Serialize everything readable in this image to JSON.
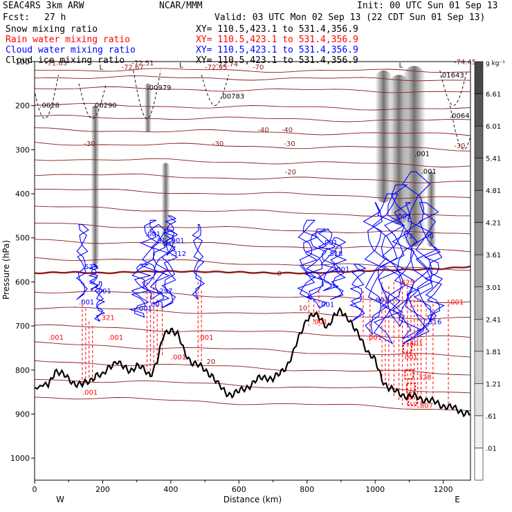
{
  "header": {
    "model": "SEAC4RS  3km ARW",
    "center": "NCAR/MMM",
    "init": "Init: 00 UTC Sun 01 Sep 13",
    "fcst_label": "Fcst:",
    "fcst_value": "27 h",
    "valid": "Valid: 03 UTC Mon 02 Sep 13 (22 CDT Sun 01 Sep 13)"
  },
  "fields": [
    {
      "name": "Snow mixing ratio",
      "xy": "XY= 110.5,423.1 to 531.4,356.9",
      "color": "#000000"
    },
    {
      "name": "Rain water mixing ratio",
      "xy": "XY= 110.5,423.1 to 531.4,356.9",
      "color": "#ff0000"
    },
    {
      "name": "Cloud water mixing ratio",
      "xy": "XY= 110.5,423.1 to 531.4,356.9",
      "color": "#0000ff"
    },
    {
      "name": "Cloud ice mixing ratio",
      "xy": "XY= 110.5,423.1 to 531.4,356.9",
      "color": "#000000"
    }
  ],
  "chart_data": {
    "type": "cross-section",
    "xlabel": "Distance (km)",
    "ylabel": "Pressure (hPa)",
    "xlim": [
      0,
      1280
    ],
    "ylim": [
      1050,
      100
    ],
    "x_ticks": [
      0,
      200,
      400,
      600,
      800,
      1000,
      1200
    ],
    "y_ticks": [
      100,
      200,
      300,
      400,
      500,
      600,
      700,
      800,
      900,
      1000
    ],
    "x_end_labels": {
      "left": "W",
      "right": "E"
    },
    "colorbar": {
      "unit": "g kg⁻¹",
      "levels": [
        "6.61",
        "6.01",
        "5.41",
        "4.81",
        "4.21",
        "3.61",
        "3.01",
        "2.41",
        "1.81",
        "1.21",
        ".61",
        ".01"
      ]
    },
    "temperature_labels": [
      {
        "x": 30,
        "p": 102,
        "text": "-71.63"
      },
      {
        "x": 285,
        "p": 102,
        "text": "-72.51"
      },
      {
        "x": 532,
        "p": 105,
        "text": "-72.74"
      },
      {
        "x": 1390,
        "p": 100,
        "text": "-74.45"
      },
      {
        "x": 190,
        "p": 112,
        "text": "L"
      },
      {
        "x": 255,
        "p": 112,
        "text": "-72.67"
      },
      {
        "x": 425,
        "p": 107,
        "text": "L"
      },
      {
        "x": 500,
        "p": 112,
        "text": "-72.95"
      },
      {
        "x": 640,
        "p": 112,
        "text": "-70"
      },
      {
        "x": 1070,
        "p": 107,
        "text": "L"
      },
      {
        "x": 655,
        "p": 254,
        "text": "-40"
      },
      {
        "x": 725,
        "p": 254,
        "text": "-40"
      },
      {
        "x": 145,
        "p": 285,
        "text": "-30"
      },
      {
        "x": 522,
        "p": 285,
        "text": "-30"
      },
      {
        "x": 732,
        "p": 285,
        "text": "-30"
      },
      {
        "x": 1250,
        "p": 290,
        "text": "-30"
      },
      {
        "x": 735,
        "p": 350,
        "text": "-20"
      },
      {
        "x": 712,
        "p": 580,
        "text": "0"
      },
      {
        "x": 775,
        "p": 658,
        "text": "10"
      },
      {
        "x": 505,
        "p": 780,
        "text": "20"
      }
    ],
    "maxima_labels": [
      {
        "x": 170,
        "p": 198,
        "text": ".00290",
        "color": "#000000"
      },
      {
        "x": 330,
        "p": 158,
        "text": ".00979",
        "color": "#000000"
      },
      {
        "x": 545,
        "p": 178,
        "text": ".00783",
        "color": "#000000"
      },
      {
        "x": 15,
        "p": 198,
        "text": ".0028",
        "color": "#000000"
      },
      {
        "x": 1190,
        "p": 130,
        "text": ".01643",
        "color": "#000000"
      },
      {
        "x": 1250,
        "p": 222,
        "text": ".0064",
        "color": "#000000"
      },
      {
        "x": 1115,
        "p": 308,
        "text": ".001",
        "color": "#000000"
      },
      {
        "x": 1135,
        "p": 348,
        "text": ".001",
        "color": "#000000"
      },
      {
        "x": 140,
        "p": 565,
        "text": ".539",
        "color": "#0000ff"
      },
      {
        "x": 325,
        "p": 490,
        "text": ".001",
        "color": "#0000ff"
      },
      {
        "x": 360,
        "p": 505,
        "text": "91",
        "color": "#0000ff"
      },
      {
        "x": 395,
        "p": 505,
        "text": ".001",
        "color": "#0000ff"
      },
      {
        "x": 400,
        "p": 535,
        "text": ".312",
        "color": "#0000ff"
      },
      {
        "x": 845,
        "p": 510,
        "text": ".001",
        "color": "#0000ff"
      },
      {
        "x": 860,
        "p": 535,
        "text": ".518",
        "color": "#0000ff"
      },
      {
        "x": 880,
        "p": 570,
        "text": ".001",
        "color": "#0000ff"
      },
      {
        "x": 1060,
        "p": 450,
        "text": ".001",
        "color": "#0000ff"
      },
      {
        "x": 1080,
        "p": 495,
        "text": ".72",
        "color": "#0000ff"
      },
      {
        "x": 1140,
        "p": 495,
        "text": ".00",
        "color": "#0000ff"
      },
      {
        "x": 1150,
        "p": 690,
        "text": ".516",
        "color": "#0000ff"
      },
      {
        "x": 130,
        "p": 645,
        "text": ".001",
        "color": "#0000ff"
      },
      {
        "x": 180,
        "p": 620,
        "text": ".001",
        "color": "#0000ff"
      },
      {
        "x": 300,
        "p": 660,
        "text": ".001",
        "color": "#0000ff"
      },
      {
        "x": 360,
        "p": 620,
        "text": ".297",
        "color": "#0000ff"
      },
      {
        "x": 335,
        "p": 650,
        "text": ".001",
        "color": "#0000ff"
      },
      {
        "x": 835,
        "p": 650,
        "text": ".001",
        "color": "#0000ff"
      },
      {
        "x": 995,
        "p": 640,
        "text": ".001",
        "color": "#0000ff"
      },
      {
        "x": 40,
        "p": 725,
        "text": ".001",
        "color": "#ff0000"
      },
      {
        "x": 190,
        "p": 680,
        "text": ".321",
        "color": "#ff0000"
      },
      {
        "x": 215,
        "p": 725,
        "text": ".001",
        "color": "#ff0000"
      },
      {
        "x": 480,
        "p": 725,
        "text": ".001",
        "color": "#ff0000"
      },
      {
        "x": 400,
        "p": 770,
        "text": ".001",
        "color": "#ff0000"
      },
      {
        "x": 815,
        "p": 690,
        "text": ".001",
        "color": "#ff0000"
      },
      {
        "x": 975,
        "p": 725,
        "text": ".001",
        "color": "#ff0000"
      },
      {
        "x": 1080,
        "p": 770,
        "text": ".001",
        "color": "#ff0000"
      },
      {
        "x": 1120,
        "p": 815,
        "text": ".328",
        "color": "#ff0000"
      },
      {
        "x": 1125,
        "p": 880,
        "text": ".807",
        "color": "#ff0000"
      },
      {
        "x": 1095,
        "p": 738,
        "text": ".401",
        "color": "#ff0000"
      },
      {
        "x": 1215,
        "p": 645,
        "text": ".001",
        "color": "#ff0000"
      },
      {
        "x": 1070,
        "p": 600,
        "text": ".625",
        "color": "#ff0000"
      },
      {
        "x": 140,
        "p": 850,
        "text": ".001",
        "color": "#ff0000"
      }
    ],
    "terrain": {
      "x": [
        0,
        40,
        60,
        80,
        100,
        120,
        140,
        160,
        180,
        200,
        220,
        240,
        260,
        280,
        300,
        320,
        340,
        360,
        380,
        400,
        420,
        440,
        460,
        480,
        500,
        520,
        540,
        560,
        580,
        600,
        620,
        640,
        660,
        680,
        700,
        720,
        740,
        760,
        780,
        800,
        820,
        840,
        860,
        880,
        900,
        920,
        940,
        960,
        980,
        1000,
        1010,
        1020,
        1040,
        1060,
        1080,
        1100,
        1120,
        1140,
        1160,
        1180,
        1200,
        1220,
        1240,
        1260,
        1280
      ],
      "p": [
        840,
        835,
        800,
        810,
        820,
        830,
        835,
        825,
        810,
        815,
        790,
        780,
        795,
        800,
        790,
        800,
        810,
        780,
        720,
        705,
        720,
        760,
        780,
        790,
        800,
        810,
        835,
        850,
        855,
        850,
        840,
        830,
        820,
        815,
        820,
        810,
        790,
        760,
        720,
        680,
        675,
        685,
        700,
        680,
        665,
        680,
        710,
        730,
        760,
        780,
        800,
        820,
        840,
        850,
        855,
        860,
        862,
        865,
        870,
        875,
        880,
        885,
        890,
        895,
        900
      ]
    },
    "freezing_level": {
      "x": [
        0,
        100,
        200,
        300,
        400,
        500,
        600,
        700,
        800,
        900,
        1000,
        1100,
        1200,
        1280
      ],
      "p": [
        580,
        578,
        580,
        577,
        576,
        577,
        578,
        580,
        580,
        577,
        574,
        572,
        570,
        565
      ]
    },
    "isotherm_levels": [
      {
        "base": 118,
        "slope": 4
      },
      {
        "base": 135,
        "slope": 6
      },
      {
        "base": 160,
        "slope": 8
      },
      {
        "base": 198,
        "slope": 10
      },
      {
        "base": 225,
        "slope": 10
      },
      {
        "base": 254,
        "slope": 12
      },
      {
        "base": 285,
        "slope": 14
      },
      {
        "base": 320,
        "slope": 16
      },
      {
        "base": 355,
        "slope": 18
      },
      {
        "base": 390,
        "slope": 20
      },
      {
        "base": 430,
        "slope": 22
      },
      {
        "base": 468,
        "slope": 24
      },
      {
        "base": 505,
        "slope": 24
      },
      {
        "base": 545,
        "slope": 25
      },
      {
        "base": 620,
        "slope": 25
      },
      {
        "base": 658,
        "slope": 26
      },
      {
        "base": 700,
        "slope": 28
      },
      {
        "base": 740,
        "slope": 30
      },
      {
        "base": 780,
        "slope": 30
      },
      {
        "base": 820,
        "slope": 30
      },
      {
        "base": 860,
        "slope": 30
      }
    ],
    "snow_columns": [
      {
        "x": 178,
        "top": 200,
        "bottom": 560,
        "w": 12
      },
      {
        "x": 333,
        "top": 150,
        "bottom": 260,
        "w": 10
      },
      {
        "x": 385,
        "top": 330,
        "bottom": 520,
        "w": 12
      },
      {
        "x": 1025,
        "top": 120,
        "bottom": 420,
        "w": 24
      },
      {
        "x": 1070,
        "top": 130,
        "bottom": 470,
        "w": 28
      },
      {
        "x": 1115,
        "top": 110,
        "bottom": 520,
        "w": 32
      },
      {
        "x": 1165,
        "top": 350,
        "bottom": 520,
        "w": 14
      }
    ]
  }
}
